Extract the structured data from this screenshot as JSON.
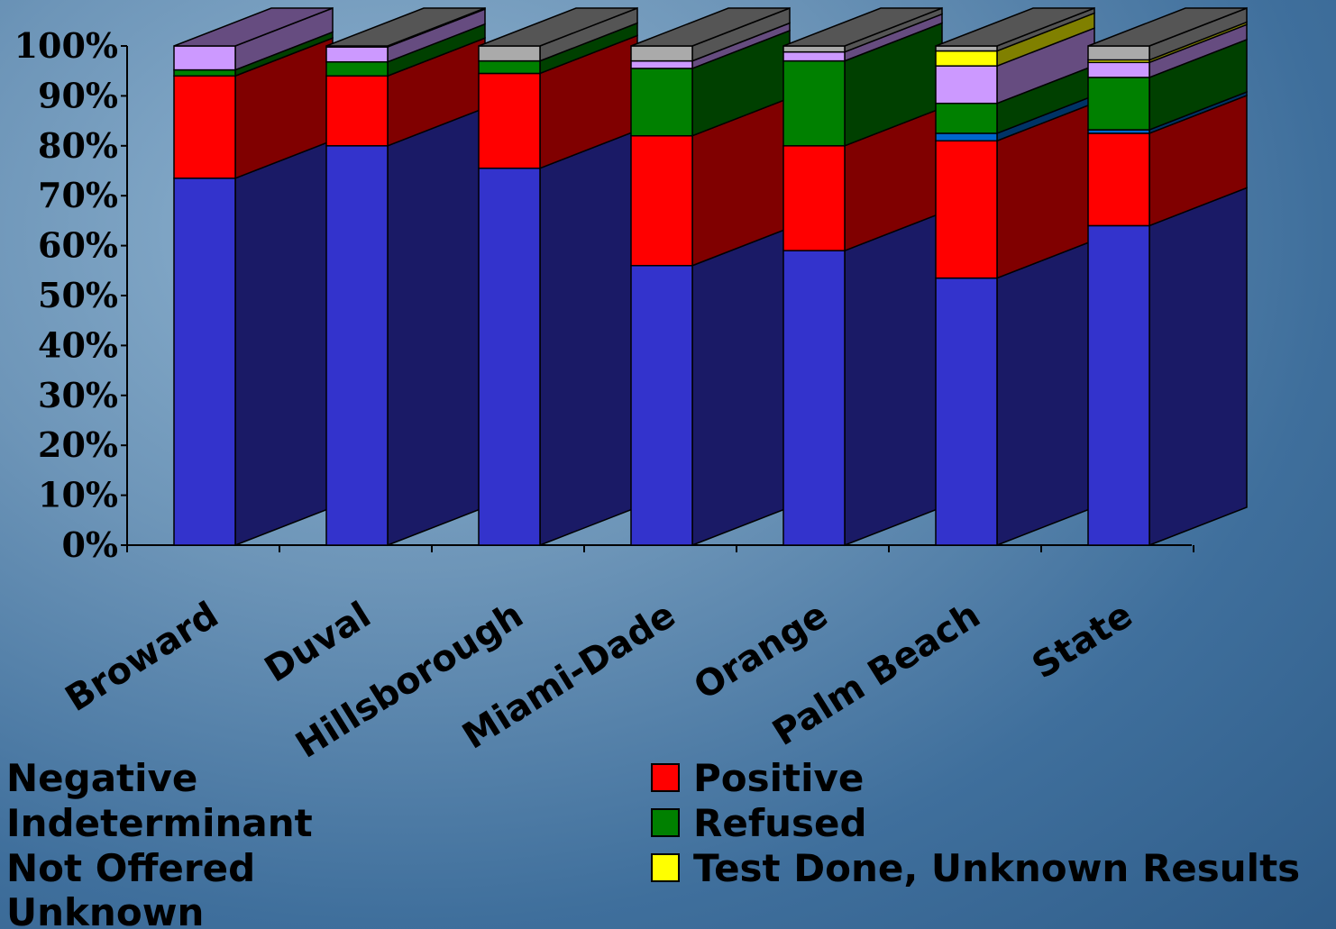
{
  "chart_data": {
    "type": "bar",
    "stacked": true,
    "three_d": true,
    "categories": [
      "Broward",
      "Duval",
      "Hillsborough",
      "Miami-Dade",
      "Orange",
      "Palm Beach",
      "State"
    ],
    "ylim": [
      0,
      100
    ],
    "yticks": [
      "0%",
      "10%",
      "20%",
      "30%",
      "40%",
      "50%",
      "60%",
      "70%",
      "80%",
      "90%",
      "100%"
    ],
    "series": [
      {
        "name": "Negative",
        "color": "#3333cc",
        "side_color": "#1a1a66",
        "values": [
          73.5,
          80,
          75.5,
          56,
          59,
          53.5,
          64
        ]
      },
      {
        "name": "Positive",
        "color": "#ff0000",
        "side_color": "#800000",
        "values": [
          20.5,
          14,
          19,
          26,
          21,
          27.5,
          18.5
        ]
      },
      {
        "name": "Indeterminant",
        "color": "#0066cc",
        "side_color": "#003366",
        "values": [
          0,
          0,
          0,
          0,
          0,
          1.5,
          0.7
        ]
      },
      {
        "name": "Refused",
        "color": "#008000",
        "side_color": "#004000",
        "values": [
          1.2,
          2.8,
          2.5,
          13.5,
          17,
          6,
          10.5
        ]
      },
      {
        "name": "Not Offered",
        "color": "#cc99ff",
        "side_color": "#664c80",
        "values": [
          4.8,
          3,
          0,
          1.5,
          1.8,
          7.5,
          3
        ]
      },
      {
        "name": "Test Done, Unknown Results",
        "color": "#ffff00",
        "side_color": "#808000",
        "values": [
          0,
          0,
          0,
          0,
          0,
          3,
          0.5
        ]
      },
      {
        "name": "Unknown",
        "color": "#aaaaaa",
        "side_color": "#555555",
        "values": [
          0,
          0.2,
          3,
          3,
          1.2,
          1,
          2.8
        ]
      }
    ],
    "legend_left": [
      "Negative",
      "Indeterminant",
      "Not Offered",
      "Unknown"
    ],
    "legend_right": [
      "Positive",
      "Refused",
      "Test Done, Unknown Results"
    ]
  }
}
